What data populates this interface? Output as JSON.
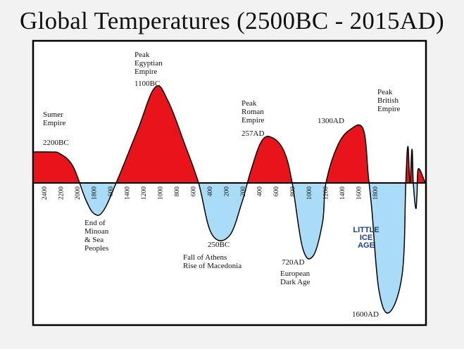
{
  "chart_data": {
    "type": "area",
    "title": "Global Temperatures (2500BC - 2015AD)",
    "xlabel": "",
    "ylabel": "",
    "grid": false,
    "x_axis_note": "years counting down BC then up AD",
    "x_ticks": [
      "2400",
      "2200",
      "2000",
      "1800",
      "600",
      "1400",
      "1200",
      "1000",
      "800",
      "600",
      "400",
      "200",
      "200",
      "400",
      "600",
      "800",
      "1000",
      "1200",
      "1400",
      "1600",
      "1800"
    ],
    "colors": {
      "warm": "#e8141a",
      "cold": "#a9dcf7",
      "outline": "#000000"
    },
    "series": [
      {
        "points": [
          [
            -2500,
            0.55
          ],
          [
            -2300,
            0.55
          ],
          [
            -2200,
            0.52
          ],
          [
            -2050,
            0.3
          ],
          [
            -1900,
            -0.3
          ],
          [
            -1800,
            -0.55
          ],
          [
            -1700,
            -0.5
          ],
          [
            -1550,
            0
          ],
          [
            -1300,
            0.95
          ],
          [
            -1100,
            1.7
          ],
          [
            -950,
            1.45
          ],
          [
            -750,
            0.65
          ],
          [
            -600,
            0
          ],
          [
            -450,
            -0.9
          ],
          [
            -250,
            -0.95
          ],
          [
            -100,
            -0.35
          ],
          [
            0,
            0.2
          ],
          [
            130,
            0.75
          ],
          [
            257,
            0.8
          ],
          [
            390,
            0.55
          ],
          [
            480,
            0
          ],
          [
            600,
            -1.15
          ],
          [
            720,
            -1.3
          ],
          [
            830,
            -0.7
          ],
          [
            870,
            0
          ],
          [
            1000,
            0.65
          ],
          [
            1150,
            0.95
          ],
          [
            1300,
            0.95
          ],
          [
            1360,
            0.1
          ],
          [
            1400,
            -0.5
          ],
          [
            1480,
            -1.9
          ],
          [
            1600,
            -2.3
          ],
          [
            1750,
            -1.6
          ],
          [
            1790,
            0
          ],
          [
            1815,
            0.65
          ],
          [
            1838,
            0
          ],
          [
            1862,
            0.6
          ],
          [
            1877,
            0
          ],
          [
            1905,
            -0.45
          ],
          [
            1920,
            -0.2
          ],
          [
            1935,
            0.25
          ],
          [
            2015,
            0
          ]
        ]
      }
    ],
    "annotations": [
      {
        "label": "Sumer\nEmpire",
        "sublabel": "2200BC"
      },
      {
        "label": "Peak\nEgyptian\nEmpire",
        "sublabel": "1100BC"
      },
      {
        "label": "Peak\nRoman\nEmpire",
        "sublabel": "257AD"
      },
      {
        "label": "1300AD"
      },
      {
        "label": "Peak\nBritish\nEmpire"
      },
      {
        "label": "End of\nMinoan\n& Sea\nPeoples"
      },
      {
        "label": "250BC",
        "extra": "Fall of Athens\nRise of Macedonia"
      },
      {
        "label": "720AD",
        "extra": "European\nDark Age"
      },
      {
        "label": "LITTLE\nICE\nAGE",
        "sublabel": "1600AD"
      }
    ]
  }
}
